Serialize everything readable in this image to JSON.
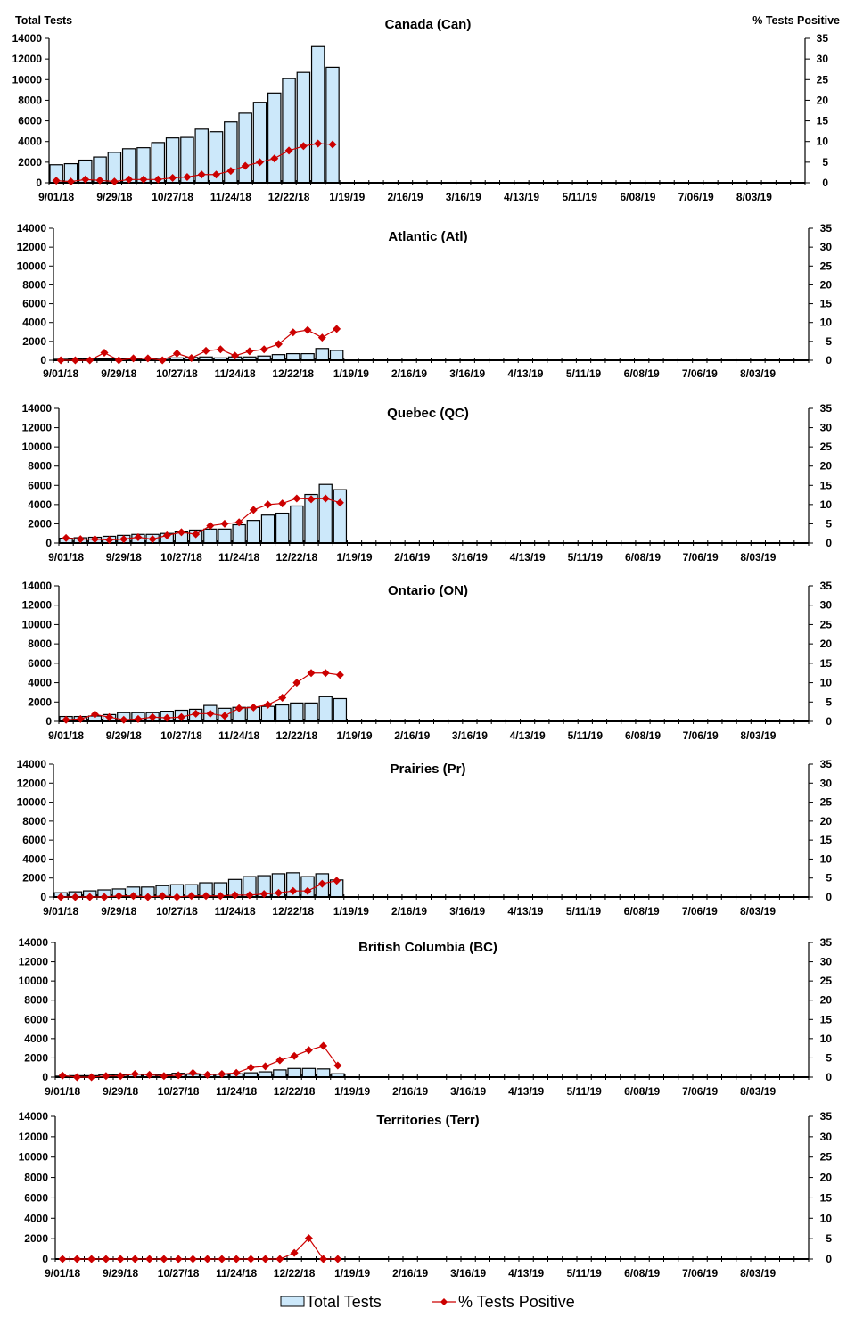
{
  "chart_data": {
    "type": "bar+line",
    "y_left_label": "Total Tests",
    "y_right_label": "% Tests Positive",
    "y_left_range": [
      0,
      14000
    ],
    "y_left_ticks": [
      0,
      2000,
      4000,
      6000,
      8000,
      10000,
      12000,
      14000
    ],
    "y_right_range": [
      0,
      35
    ],
    "y_right_ticks": [
      0,
      5,
      10,
      15,
      20,
      25,
      30,
      35
    ],
    "x_weeks": 52,
    "x_tick_labels": [
      "9/01/18",
      "9/29/18",
      "10/27/18",
      "11/24/18",
      "12/22/18",
      "1/19/19",
      "2/16/19",
      "3/16/19",
      "4/13/19",
      "5/11/19",
      "6/08/19",
      "7/06/19",
      "8/03/19"
    ],
    "legend": {
      "bars": "Total Tests",
      "line": "% Tests Positive",
      "position": "bottom"
    },
    "colors": {
      "bar_fill": "#cce8fa",
      "bar_stroke": "#000000",
      "line": "#cc0000"
    },
    "grid": false,
    "panels": [
      {
        "title": "Canada (Can)",
        "total_tests": [
          1750,
          1850,
          2200,
          2500,
          2950,
          3300,
          3400,
          3900,
          4350,
          4400,
          5200,
          4950,
          5900,
          6750,
          7800,
          8700,
          10100,
          10700,
          13200,
          11200
        ],
        "pct_positive": [
          0.5,
          0.3,
          0.8,
          0.6,
          0.3,
          0.8,
          0.8,
          0.8,
          1.2,
          1.4,
          2.0,
          2.0,
          2.9,
          4.1,
          5.0,
          5.9,
          7.8,
          8.9,
          9.5,
          9.3
        ]
      },
      {
        "title": "Atlantic (Atl)",
        "total_tests": [
          100,
          150,
          150,
          150,
          150,
          150,
          200,
          200,
          250,
          300,
          350,
          250,
          350,
          350,
          450,
          600,
          700,
          700,
          1250,
          1050
        ],
        "pct_positive": [
          0,
          0,
          0,
          2.0,
          0,
          0.5,
          0.5,
          0,
          1.8,
          0.6,
          2.5,
          2.9,
          1.2,
          2.4,
          2.9,
          4.3,
          7.4,
          8.0,
          6.0,
          8.3
        ]
      },
      {
        "title": "Quebec (QC)",
        "total_tests": [
          500,
          550,
          600,
          700,
          800,
          900,
          900,
          1000,
          1150,
          1350,
          1450,
          1450,
          1900,
          2350,
          2900,
          3100,
          3850,
          5050,
          6100,
          5550
        ],
        "pct_positive": [
          1.3,
          1.0,
          1.0,
          0.8,
          1.0,
          1.5,
          1.0,
          2.0,
          2.8,
          2.3,
          4.5,
          5.0,
          5.4,
          8.6,
          10.0,
          10.3,
          11.6,
          11.4,
          11.6,
          10.5
        ]
      },
      {
        "title": "Ontario (ON)",
        "total_tests": [
          500,
          500,
          550,
          700,
          900,
          900,
          900,
          1050,
          1150,
          1250,
          1650,
          1350,
          1450,
          1450,
          1550,
          1700,
          1900,
          1900,
          2550,
          2350
        ],
        "pct_positive": [
          0.4,
          0.6,
          1.8,
          1.1,
          0.4,
          0.6,
          1.1,
          0.9,
          1.1,
          2.0,
          2.0,
          1.4,
          3.4,
          3.6,
          4.3,
          6.1,
          10.0,
          12.5,
          12.5,
          12.0
        ]
      },
      {
        "title": "Prairies (Pr)",
        "total_tests": [
          450,
          550,
          650,
          750,
          850,
          1050,
          1050,
          1200,
          1300,
          1300,
          1500,
          1500,
          1850,
          2150,
          2250,
          2450,
          2550,
          2150,
          2450,
          1800
        ],
        "pct_positive": [
          0,
          0,
          0,
          0,
          0.3,
          0.3,
          0,
          0.3,
          0,
          0.3,
          0.3,
          0.3,
          0.5,
          0.5,
          0.8,
          1.1,
          1.6,
          1.6,
          3.5,
          4.3
        ]
      },
      {
        "title": "British Columbia (BC)",
        "total_tests": [
          100,
          150,
          150,
          250,
          250,
          300,
          300,
          250,
          400,
          300,
          300,
          300,
          350,
          450,
          550,
          750,
          900,
          900,
          850,
          350
        ],
        "pct_positive": [
          0.4,
          0,
          0,
          0.3,
          0.3,
          0.8,
          0.6,
          0.3,
          0.5,
          1.1,
          0.6,
          0.8,
          1.1,
          2.5,
          2.8,
          4.4,
          5.5,
          7.0,
          8.1,
          3.0
        ]
      },
      {
        "title": "Territories (Terr)",
        "total_tests": [
          20,
          20,
          20,
          20,
          20,
          20,
          20,
          20,
          20,
          20,
          20,
          20,
          20,
          20,
          20,
          20,
          20,
          20,
          20,
          20
        ],
        "pct_positive": [
          0,
          0,
          0,
          0,
          0,
          0,
          0,
          0,
          0,
          0,
          0,
          0,
          0,
          0,
          0,
          0,
          1.5,
          5.1,
          0,
          0
        ]
      }
    ]
  }
}
